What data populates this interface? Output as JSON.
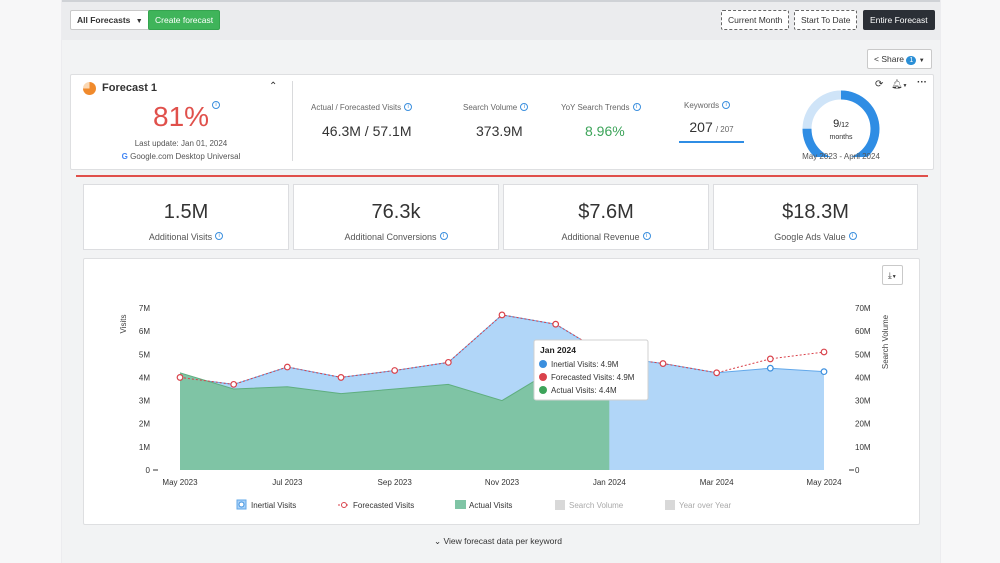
{
  "toolbar": {
    "forecast_select": "All Forecasts",
    "create_label": "Create forecast",
    "range_buttons": [
      "Current Month",
      "Start To Date",
      "Entire Forecast"
    ],
    "share_label": "Share",
    "share_count": "1"
  },
  "summary": {
    "name": "Forecast 1",
    "score": "81%",
    "last_update": "Last update: Jan 01, 2024",
    "source": "Google.com Desktop Universal",
    "metrics": [
      {
        "label": "Actual / Forecasted Visits",
        "value": "46.3M / 57.1M"
      },
      {
        "label": "Search Volume",
        "value": "373.9M"
      },
      {
        "label": "YoY Search Trends",
        "value": "8.96%"
      }
    ],
    "keywords_label": "Keywords",
    "keywords_value": "207",
    "keywords_total": "/ 207",
    "gauge_value": "9/12",
    "gauge_value_main": "9",
    "gauge_value_total": "/12",
    "gauge_unit": "months",
    "gauge_progress": 0.75,
    "period": "May 2023 - April 2024"
  },
  "kpis": [
    {
      "value": "1.5M",
      "label": "Additional Visits"
    },
    {
      "value": "76.3k",
      "label": "Additional Conversions"
    },
    {
      "value": "$7.6M",
      "label": "Additional Revenue"
    },
    {
      "value": "$18.3M",
      "label": "Google Ads Value"
    }
  ],
  "colors": {
    "accent": "#2f8de4",
    "positive": "#3da45a",
    "score": "#e0504b",
    "forecast_line": "#d9424b",
    "inertial": "#a9d1f7",
    "actual": "#7fc4a5"
  },
  "chart_data": {
    "type": "area",
    "x_dates": [
      "2023-05",
      "2023-06",
      "2023-07",
      "2023-08",
      "2023-09",
      "2023-10",
      "2023-11",
      "2023-12",
      "2024-01",
      "2024-02",
      "2024-03",
      "2024-04",
      "2024-05"
    ],
    "xticks": [
      "May 2023",
      "Jul 2023",
      "Sep 2023",
      "Nov 2023",
      "Jan 2024",
      "Mar 2024",
      "May 2024"
    ],
    "ylabel_left": "Visits",
    "ylabel_right": "Search Volume",
    "yticks_left": [
      "0",
      "1M",
      "2M",
      "3M",
      "4M",
      "5M",
      "6M",
      "7M"
    ],
    "yticks_right": [
      "0",
      "10M",
      "20M",
      "30M",
      "40M",
      "50M",
      "60M",
      "70M"
    ],
    "ylim_left": [
      0,
      7000000
    ],
    "series": [
      {
        "name": "Inertial Visits",
        "values": [
          4000000,
          3700000,
          4450000,
          4000000,
          4300000,
          4650000,
          6700000,
          6300000,
          4900000,
          4600000,
          4200000,
          4400000,
          4250000
        ]
      },
      {
        "name": "Forecasted Visits",
        "values": [
          4000000,
          3700000,
          4450000,
          4000000,
          4300000,
          4650000,
          6700000,
          6300000,
          4900000,
          4600000,
          4200000,
          4800000,
          5100000
        ]
      },
      {
        "name": "Actual Visits",
        "values": [
          4200000,
          3500000,
          3600000,
          3300000,
          3500000,
          3700000,
          3000000,
          4400000,
          4400000
        ]
      }
    ],
    "legend": [
      "Inertial Visits",
      "Forecasted Visits",
      "Actual Visits",
      "Search Volume",
      "Year over Year"
    ],
    "tooltip": {
      "title": "Jan 2024",
      "lines": [
        "Inertial Visits: 4.9M",
        "Forecasted Visits: 4.9M",
        "Actual Visits: 4.4M"
      ]
    }
  },
  "footer_link": "View forecast data per keyword"
}
